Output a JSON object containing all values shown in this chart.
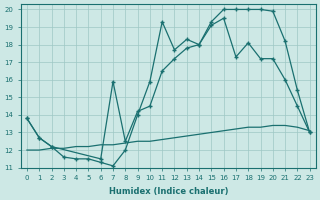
{
  "xlabel": "Humidex (Indice chaleur)",
  "background_color": "#cde8e5",
  "grid_color": "#9ec8c5",
  "line_color": "#1a7070",
  "xlim": [
    -0.5,
    23.5
  ],
  "ylim": [
    11,
    20.3
  ],
  "yticks": [
    11,
    12,
    13,
    14,
    15,
    16,
    17,
    18,
    19,
    20
  ],
  "xticks": [
    0,
    1,
    2,
    3,
    4,
    5,
    6,
    7,
    8,
    9,
    10,
    11,
    12,
    13,
    14,
    15,
    16,
    17,
    18,
    19,
    20,
    21,
    22,
    23
  ],
  "series1_x": [
    0,
    1,
    2,
    3,
    4,
    5,
    6,
    7,
    8,
    9,
    10,
    11,
    12,
    13,
    14,
    15,
    16,
    17,
    18,
    19,
    20,
    21,
    22,
    23
  ],
  "series1_y": [
    13.8,
    12.7,
    12.2,
    11.6,
    11.5,
    11.5,
    11.3,
    11.1,
    12.0,
    14.0,
    15.9,
    19.3,
    17.7,
    18.3,
    18.0,
    19.3,
    20.0,
    20.0,
    20.0,
    20.0,
    19.9,
    18.2,
    15.4,
    13.0
  ],
  "series2_x": [
    0,
    1,
    2,
    6,
    7,
    8,
    9,
    10,
    11,
    12,
    13,
    14,
    15,
    16,
    17,
    18,
    19,
    20,
    21,
    22,
    23
  ],
  "series2_y": [
    13.8,
    12.7,
    12.2,
    11.5,
    15.9,
    12.5,
    14.2,
    14.5,
    16.5,
    17.2,
    17.8,
    18.0,
    19.1,
    19.5,
    17.3,
    18.1,
    17.2,
    17.2,
    16.0,
    14.5,
    13.0
  ],
  "series3_x": [
    0,
    1,
    2,
    3,
    4,
    5,
    6,
    7,
    8,
    9,
    10,
    11,
    12,
    13,
    14,
    15,
    16,
    17,
    18,
    19,
    20,
    21,
    22,
    23
  ],
  "series3_y": [
    12.0,
    12.0,
    12.1,
    12.1,
    12.2,
    12.2,
    12.3,
    12.3,
    12.4,
    12.5,
    12.5,
    12.6,
    12.7,
    12.8,
    12.9,
    13.0,
    13.1,
    13.2,
    13.3,
    13.3,
    13.4,
    13.4,
    13.3,
    13.1
  ]
}
